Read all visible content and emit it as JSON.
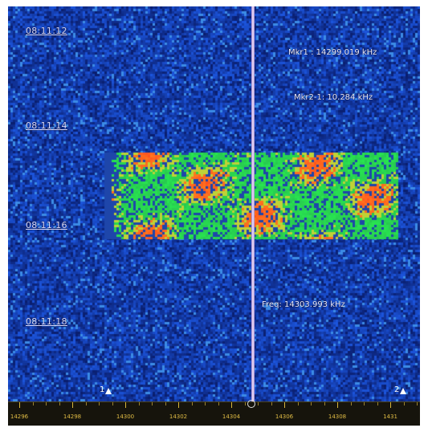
{
  "waterfall": {
    "time_labels": [
      "08:11:12",
      "08:11:14",
      "08:11:16",
      "08:11:18"
    ],
    "markers": {
      "mkr1": "Mkr1 : 14299.019 kHz",
      "mkr2": "Mkr2-1: 10.284  kHz",
      "freq": "Freq: 14303.993 kHz"
    },
    "marker_labels": [
      "1",
      "2"
    ],
    "center_mark": "0",
    "axis_ticks": [
      "14296",
      "14298",
      "14300",
      "14302",
      "14304",
      "14306",
      "14308",
      "1431"
    ],
    "colors": {
      "background": "#0b1a74",
      "signal_low": "#2fd05a",
      "signal_mid": "#b7d43a",
      "signal_high": "#ff4a2a",
      "axis_text": "#e1bd45"
    }
  }
}
